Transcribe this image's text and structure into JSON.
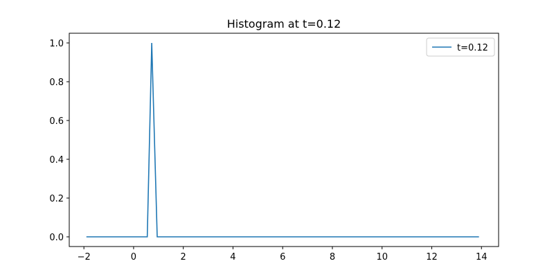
{
  "chart_data": {
    "type": "line",
    "title": "Histogram at t=0.12",
    "xlabel": "",
    "ylabel": "",
    "xlim": [
      -2.59,
      14.69
    ],
    "ylim": [
      -0.05,
      1.05
    ],
    "xticks": [
      -2,
      0,
      2,
      4,
      6,
      8,
      10,
      12,
      14
    ],
    "xtick_labels": [
      "−2",
      "0",
      "2",
      "4",
      "6",
      "8",
      "10",
      "12",
      "14"
    ],
    "yticks": [
      0.0,
      0.2,
      0.4,
      0.6,
      0.8,
      1.0
    ],
    "ytick_labels": [
      "0.0",
      "0.2",
      "0.4",
      "0.6",
      "0.8",
      "1.0"
    ],
    "grid": false,
    "legend_position": "top-right",
    "series": [
      {
        "name": "t=0.12",
        "color": "#1f77b4",
        "x": [
          -1.9,
          0.55,
          0.73,
          0.95,
          13.9
        ],
        "y": [
          0.0,
          0.0,
          1.0,
          0.0,
          0.0
        ]
      }
    ]
  }
}
